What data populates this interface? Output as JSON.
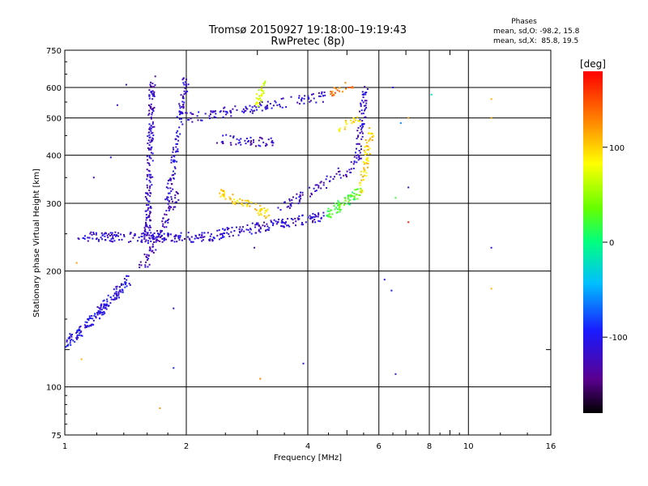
{
  "chart_data": {
    "type": "scatter",
    "title": "Tromsø 20150927 19:18:00–19:19:43",
    "subtitle": "RwPretec (8p)",
    "xlabel": "Frequency [MHz]",
    "ylabel": "Stationary phase Virtual Height [km]",
    "x_scale": "log",
    "y_scale": "log",
    "xlim": [
      1,
      16
    ],
    "ylim": [
      75,
      750
    ],
    "x_ticks": [
      1,
      2,
      4,
      6,
      8,
      10,
      16
    ],
    "y_ticks": [
      75,
      100,
      200,
      300,
      400,
      500,
      600,
      750
    ],
    "x_grid": [
      2,
      4,
      6,
      8,
      10
    ],
    "x_minor": [
      3,
      5,
      7,
      9
    ],
    "y_grid": [
      100,
      200,
      300,
      400,
      500,
      600
    ],
    "y_minor": [
      125
    ],
    "stats": {
      "heading": "Phases",
      "o_line": "mean, sd,O: -98.2, 15.8",
      "x_line": "mean, sd,X:  85.8, 19.5"
    },
    "colorbar": {
      "label": "[deg]",
      "ticks": [
        100,
        0,
        -100
      ],
      "range": [
        -180,
        180
      ]
    },
    "traces": [
      {
        "f1": 1.08,
        "f2": 2.2,
        "h1": 245,
        "h2": 245,
        "n": 160,
        "phase": -115
      },
      {
        "f1": 2.2,
        "f2": 4.4,
        "h1": 245,
        "h2": 278,
        "n": 160,
        "phase": -112
      },
      {
        "f1": 4.4,
        "f2": 5.4,
        "h1": 278,
        "h2": 320,
        "n": 70,
        "phase": 25
      },
      {
        "f1": 5.4,
        "f2": 5.75,
        "h1": 320,
        "h2": 470,
        "n": 60,
        "phase": 100
      },
      {
        "f1": 3.4,
        "f2": 5.3,
        "h1": 290,
        "h2": 380,
        "n": 70,
        "phase": -120
      },
      {
        "f1": 5.3,
        "f2": 5.55,
        "h1": 380,
        "h2": 600,
        "n": 70,
        "phase": -115
      },
      {
        "f1": 2.4,
        "f2": 3.2,
        "h1": 318,
        "h2": 280,
        "n": 70,
        "phase": 100
      },
      {
        "f1": 2.0,
        "f2": 4.5,
        "h1": 500,
        "h2": 570,
        "n": 120,
        "phase": -112
      },
      {
        "f1": 4.5,
        "f2": 5.2,
        "h1": 580,
        "h2": 615,
        "n": 20,
        "phase": 135
      },
      {
        "f1": 3.0,
        "f2": 3.1,
        "h1": 540,
        "h2": 620,
        "n": 30,
        "phase": 70
      },
      {
        "f1": 2.4,
        "f2": 3.3,
        "h1": 440,
        "h2": 430,
        "n": 50,
        "phase": -120
      },
      {
        "f1": 1.6,
        "f2": 1.65,
        "h1": 240,
        "h2": 630,
        "n": 170,
        "phase": -118
      },
      {
        "f1": 1.8,
        "f2": 2.0,
        "h1": 300,
        "h2": 640,
        "n": 110,
        "phase": -110
      },
      {
        "f1": 1.55,
        "f2": 1.9,
        "h1": 200,
        "h2": 320,
        "n": 80,
        "phase": -125
      },
      {
        "f1": 1.02,
        "f2": 1.45,
        "h1": 130,
        "h2": 190,
        "n": 170,
        "phase": -105
      },
      {
        "f1": 4.8,
        "f2": 5.4,
        "h1": 470,
        "h2": 500,
        "n": 20,
        "phase": 95
      }
    ],
    "outliers": [
      {
        "x": 1.42,
        "y": 610,
        "phase": -115
      },
      {
        "x": 1.35,
        "y": 540,
        "phase": -120
      },
      {
        "x": 1.3,
        "y": 395,
        "phase": -118
      },
      {
        "x": 1.18,
        "y": 350,
        "phase": -120
      },
      {
        "x": 1.07,
        "y": 210,
        "phase": 120
      },
      {
        "x": 1.1,
        "y": 118,
        "phase": 110
      },
      {
        "x": 1.72,
        "y": 88,
        "phase": 120
      },
      {
        "x": 1.86,
        "y": 112,
        "phase": -90
      },
      {
        "x": 1.86,
        "y": 160,
        "phase": -110
      },
      {
        "x": 2.95,
        "y": 230,
        "phase": -120
      },
      {
        "x": 3.05,
        "y": 105,
        "phase": 130
      },
      {
        "x": 3.9,
        "y": 115,
        "phase": -110
      },
      {
        "x": 6.2,
        "y": 190,
        "phase": -110
      },
      {
        "x": 6.45,
        "y": 178,
        "phase": -100
      },
      {
        "x": 6.6,
        "y": 108,
        "phase": -105
      },
      {
        "x": 7.1,
        "y": 268,
        "phase": 170
      },
      {
        "x": 7.1,
        "y": 330,
        "phase": -115
      },
      {
        "x": 7.1,
        "y": 500,
        "phase": 120
      },
      {
        "x": 6.6,
        "y": 310,
        "phase": 20
      },
      {
        "x": 6.5,
        "y": 600,
        "phase": -110
      },
      {
        "x": 8.1,
        "y": 575,
        "phase": -20
      },
      {
        "x": 11.4,
        "y": 560,
        "phase": 110
      },
      {
        "x": 11.4,
        "y": 500,
        "phase": 120
      },
      {
        "x": 11.4,
        "y": 230,
        "phase": -115
      },
      {
        "x": 11.4,
        "y": 180,
        "phase": 110
      },
      {
        "x": 6.8,
        "y": 485,
        "phase": -60
      }
    ]
  }
}
